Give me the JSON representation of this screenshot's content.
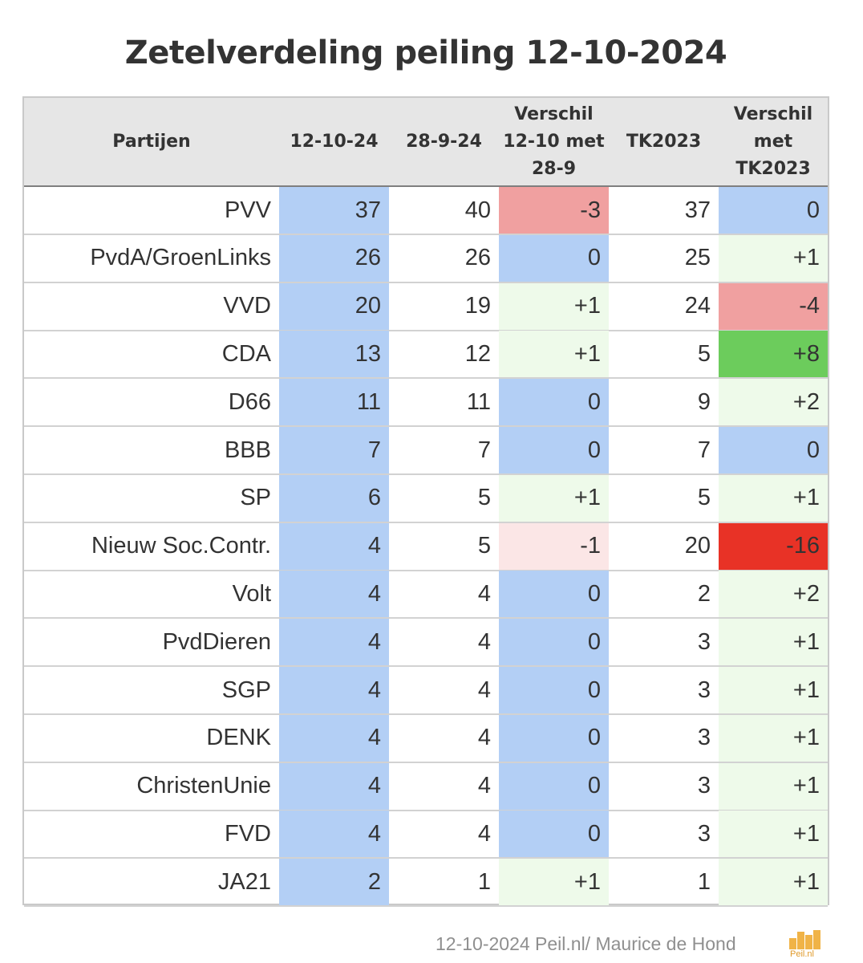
{
  "title": "Zetelverdeling peiling 12-10-2024",
  "headers": [
    "Partijen",
    "12-10-24",
    "28-9-24",
    "Verschil\n12-10 met\n28-9",
    "TK2023",
    "Verschil\nmet\nTK2023"
  ],
  "rows": [
    {
      "party": "PVV",
      "current": "37",
      "previous": "40",
      "diff_prev": "-3",
      "tk2023": "37",
      "diff_tk": "0",
      "diff_prev_color": "#f0a0a0",
      "diff_tk_color": "#b3cff5"
    },
    {
      "party": "PvdA/GroenLinks",
      "current": "26",
      "previous": "26",
      "diff_prev": "0",
      "tk2023": "25",
      "diff_tk": "+1",
      "diff_prev_color": "#b3cff5",
      "diff_tk_color": "#eefaea"
    },
    {
      "party": "VVD",
      "current": "20",
      "previous": "19",
      "diff_prev": "+1",
      "tk2023": "24",
      "diff_tk": "-4",
      "diff_prev_color": "#eefaea",
      "diff_tk_color": "#f0a0a0"
    },
    {
      "party": "CDA",
      "current": "13",
      "previous": "12",
      "diff_prev": "+1",
      "tk2023": "5",
      "diff_tk": "+8",
      "diff_prev_color": "#eefaea",
      "diff_tk_color": "#6ccc5c"
    },
    {
      "party": "D66",
      "current": "11",
      "previous": "11",
      "diff_prev": "0",
      "tk2023": "9",
      "diff_tk": "+2",
      "diff_prev_color": "#b3cff5",
      "diff_tk_color": "#eefaea"
    },
    {
      "party": "BBB",
      "current": "7",
      "previous": "7",
      "diff_prev": "0",
      "tk2023": "7",
      "diff_tk": "0",
      "diff_prev_color": "#b3cff5",
      "diff_tk_color": "#b3cff5"
    },
    {
      "party": "SP",
      "current": "6",
      "previous": "5",
      "diff_prev": "+1",
      "tk2023": "5",
      "diff_tk": "+1",
      "diff_prev_color": "#eefaea",
      "diff_tk_color": "#eefaea"
    },
    {
      "party": "Nieuw Soc.Contr.",
      "current": "4",
      "previous": "5",
      "diff_prev": "-1",
      "tk2023": "20",
      "diff_tk": "-16",
      "diff_prev_color": "#fbe6e6",
      "diff_tk_color": "#e83226"
    },
    {
      "party": "Volt",
      "current": "4",
      "previous": "4",
      "diff_prev": "0",
      "tk2023": "2",
      "diff_tk": "+2",
      "diff_prev_color": "#b3cff5",
      "diff_tk_color": "#eefaea"
    },
    {
      "party": "PvdDieren",
      "current": "4",
      "previous": "4",
      "diff_prev": "0",
      "tk2023": "3",
      "diff_tk": "+1",
      "diff_prev_color": "#b3cff5",
      "diff_tk_color": "#eefaea"
    },
    {
      "party": "SGP",
      "current": "4",
      "previous": "4",
      "diff_prev": "0",
      "tk2023": "3",
      "diff_tk": "+1",
      "diff_prev_color": "#b3cff5",
      "diff_tk_color": "#eefaea"
    },
    {
      "party": "DENK",
      "current": "4",
      "previous": "4",
      "diff_prev": "0",
      "tk2023": "3",
      "diff_tk": "+1",
      "diff_prev_color": "#b3cff5",
      "diff_tk_color": "#eefaea"
    },
    {
      "party": "ChristenUnie",
      "current": "4",
      "previous": "4",
      "diff_prev": "0",
      "tk2023": "3",
      "diff_tk": "+1",
      "diff_prev_color": "#b3cff5",
      "diff_tk_color": "#eefaea"
    },
    {
      "party": "FVD",
      "current": "4",
      "previous": "4",
      "diff_prev": "0",
      "tk2023": "3",
      "diff_tk": "+1",
      "diff_prev_color": "#b3cff5",
      "diff_tk_color": "#eefaea"
    },
    {
      "party": "JA21",
      "current": "2",
      "previous": "1",
      "diff_prev": "+1",
      "tk2023": "1",
      "diff_tk": "+1",
      "diff_prev_color": "#eefaea",
      "diff_tk_color": "#eefaea"
    }
  ],
  "colors": {
    "current_column": "#b3cff5",
    "header_background": "#e6e6e6",
    "row_divider": "#d2d2d2",
    "logo": "#f0b347"
  },
  "footer": "12-10-2024 Peil.nl/ Maurice de Hond",
  "logo_text": "Peil.nl",
  "chart_data": {
    "type": "table",
    "title": "Zetelverdeling peiling 12-10-2024",
    "columns": [
      "Partijen",
      "12-10-24",
      "28-9-24",
      "Verschil 12-10 met 28-9",
      "TK2023",
      "Verschil met TK2023"
    ],
    "categories": [
      "PVV",
      "PvdA/GroenLinks",
      "VVD",
      "CDA",
      "D66",
      "BBB",
      "SP",
      "Nieuw Soc.Contr.",
      "Volt",
      "PvdDieren",
      "SGP",
      "DENK",
      "ChristenUnie",
      "FVD",
      "JA21"
    ],
    "series": [
      {
        "name": "12-10-24",
        "values": [
          37,
          26,
          20,
          13,
          11,
          7,
          6,
          4,
          4,
          4,
          4,
          4,
          4,
          4,
          2
        ]
      },
      {
        "name": "28-9-24",
        "values": [
          40,
          26,
          19,
          12,
          11,
          7,
          5,
          5,
          4,
          4,
          4,
          4,
          4,
          4,
          1
        ]
      },
      {
        "name": "Verschil 12-10 met 28-9",
        "values": [
          -3,
          0,
          1,
          1,
          0,
          0,
          1,
          -1,
          0,
          0,
          0,
          0,
          0,
          0,
          1
        ]
      },
      {
        "name": "TK2023",
        "values": [
          37,
          25,
          24,
          5,
          9,
          7,
          5,
          20,
          2,
          3,
          3,
          3,
          3,
          3,
          1
        ]
      },
      {
        "name": "Verschil met TK2023",
        "values": [
          0,
          1,
          -4,
          8,
          2,
          0,
          1,
          -16,
          2,
          1,
          1,
          1,
          1,
          1,
          1
        ]
      }
    ]
  }
}
